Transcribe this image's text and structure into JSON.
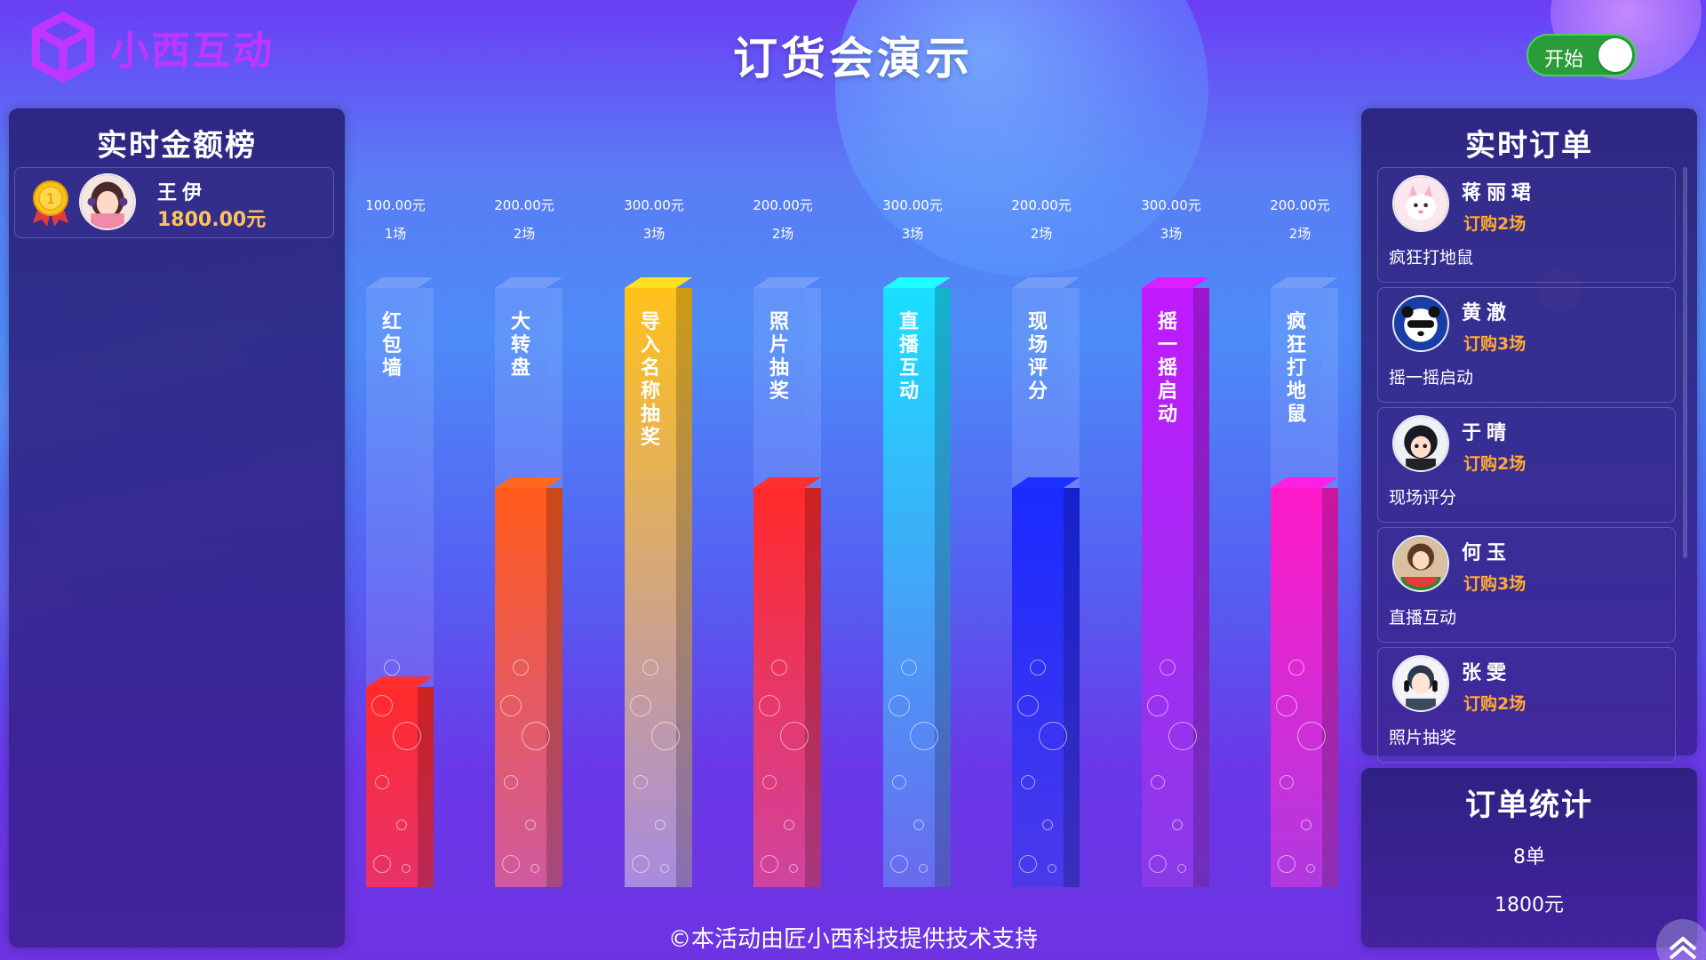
{
  "header": {
    "logo_text": "小西互动",
    "title": "订货会演示",
    "toggle_label": "开始",
    "toggle_on": true
  },
  "leaderboard": {
    "title": "实时金额榜",
    "items": [
      {
        "rank": "1",
        "name": "王伊",
        "amount": "1800.00元"
      }
    ]
  },
  "bars": [
    {
      "name": "红包墙",
      "amount": "100.00元",
      "sessions": "1场",
      "value": 100,
      "color_top": "#ff2a2a",
      "color_bottom": "#e8326c"
    },
    {
      "name": "大转盘",
      "amount": "200.00元",
      "sessions": "2场",
      "value": 200,
      "color_top": "#ff5a1a",
      "color_bottom": "#d05aa0"
    },
    {
      "name": "导入名称抽奖",
      "amount": "300.00元",
      "sessions": "3场",
      "value": 300,
      "color_top": "#ffc21a",
      "color_bottom": "#a88ae0"
    },
    {
      "name": "照片抽奖",
      "amount": "200.00元",
      "sessions": "2场",
      "value": 200,
      "color_top": "#ff2a2a",
      "color_bottom": "#d044a0"
    },
    {
      "name": "直播互动",
      "amount": "300.00元",
      "sessions": "3场",
      "value": 300,
      "color_top": "#1ae0ff",
      "color_bottom": "#6a6af0"
    },
    {
      "name": "现场评分",
      "amount": "200.00元",
      "sessions": "2场",
      "value": 200,
      "color_top": "#1a2aff",
      "color_bottom": "#4a3aea"
    },
    {
      "name": "摇一摇启动",
      "amount": "300.00元",
      "sessions": "3场",
      "value": 300,
      "color_top": "#c01aff",
      "color_bottom": "#8a3ae8"
    },
    {
      "name": "疯狂打地鼠",
      "amount": "200.00元",
      "sessions": "2场",
      "value": 200,
      "color_top": "#ff1ac8",
      "color_bottom": "#b03ae0"
    }
  ],
  "bars_max": 300,
  "orders": {
    "title": "实时订单",
    "items": [
      {
        "name": "蒋丽珺",
        "qty": "订购2场",
        "game": "疯狂打地鼠",
        "avatar": "cat"
      },
      {
        "name": "黄澈",
        "qty": "订购3场",
        "game": "摇一摇启动",
        "avatar": "panda"
      },
      {
        "name": "于晴",
        "qty": "订购2场",
        "game": "现场评分",
        "avatar": "girl-dark"
      },
      {
        "name": "何玉",
        "qty": "订购3场",
        "game": "直播互动",
        "avatar": "girl-watermelon"
      },
      {
        "name": "张雯",
        "qty": "订购2场",
        "game": "照片抽奖",
        "avatar": "boy-headphones"
      }
    ]
  },
  "stats": {
    "title": "订单统计",
    "count": "8单",
    "amount": "1800元"
  },
  "footer": "©本活动由匠小西科技提供技术支持"
}
